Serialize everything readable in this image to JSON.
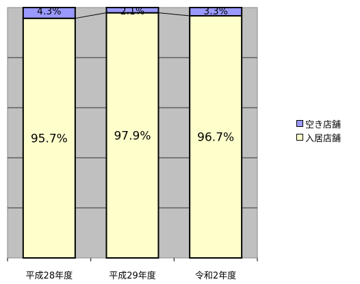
{
  "chart_data": {
    "type": "bar",
    "stacked": true,
    "percent_stacked": true,
    "categories": [
      "平成28年度",
      "平成29年度",
      "令和2年度"
    ],
    "series": [
      {
        "name": "入居店舗",
        "values": [
          95.7,
          97.9,
          96.7
        ],
        "labels": [
          "95.7%",
          "97.9%",
          "96.7%"
        ],
        "color": "#ffffcc"
      },
      {
        "name": "空き店舗",
        "values": [
          4.3,
          2.1,
          3.3
        ],
        "labels": [
          "4.3%",
          "2.1%",
          "3.3%"
        ],
        "color": "#9999ff"
      }
    ],
    "ylim": [
      0,
      100
    ],
    "grid": true,
    "series_lines": true,
    "plot_background": "#c0c0c0",
    "legend_position": "right",
    "title": "",
    "xlabel": "",
    "ylabel": ""
  },
  "legend": {
    "items": [
      {
        "label": "空き店舗",
        "color": "#9999ff"
      },
      {
        "label": "入居店舗",
        "color": "#ffffcc"
      }
    ]
  }
}
